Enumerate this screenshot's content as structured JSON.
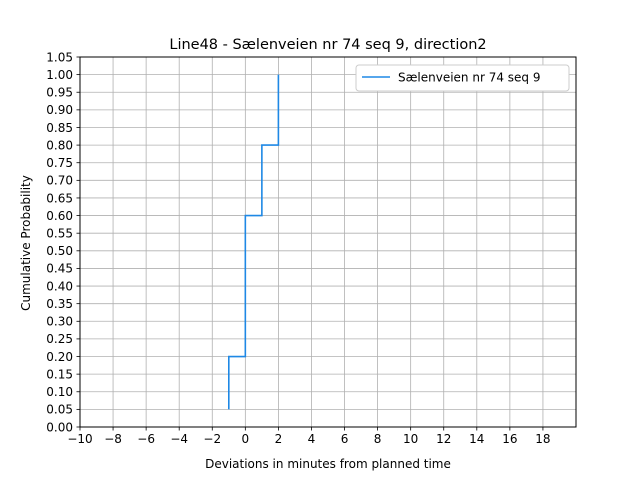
{
  "chart_data": {
    "type": "line",
    "drawstyle": "step",
    "title": "Line48 - Sælenveien nr 74 seq 9, direction2",
    "xlabel": "Deviations in minutes from planned time",
    "ylabel": "Cumulative Probability",
    "xlim": [
      -10,
      20
    ],
    "ylim": [
      0,
      1.05
    ],
    "xticks": [
      -10,
      -8,
      -6,
      -4,
      -2,
      0,
      2,
      4,
      6,
      8,
      10,
      12,
      14,
      16,
      18
    ],
    "xtick_labels": [
      "−10",
      "−8",
      "−6",
      "−4",
      "−2",
      "0",
      "2",
      "4",
      "6",
      "8",
      "10",
      "12",
      "14",
      "16",
      "18"
    ],
    "yticks": [
      0,
      0.05,
      0.1,
      0.15,
      0.2,
      0.25,
      0.3,
      0.35,
      0.4,
      0.45,
      0.5,
      0.55,
      0.6,
      0.65,
      0.7,
      0.75,
      0.8,
      0.85,
      0.9,
      0.95,
      1.0,
      1.05
    ],
    "ytick_labels": [
      "0.00",
      "0.05",
      "0.10",
      "0.15",
      "0.20",
      "0.25",
      "0.30",
      "0.35",
      "0.40",
      "0.45",
      "0.50",
      "0.55",
      "0.60",
      "0.65",
      "0.70",
      "0.75",
      "0.80",
      "0.85",
      "0.90",
      "0.95",
      "1.00",
      "1.05"
    ],
    "grid": true,
    "legend_position": "top-right",
    "series": [
      {
        "name": "Sælenveien nr 74 seq 9",
        "color": "#1e88e5",
        "points": [
          [
            -1,
            0.05
          ],
          [
            -1,
            0.2
          ],
          [
            0,
            0.2
          ],
          [
            0,
            0.6
          ],
          [
            1,
            0.6
          ],
          [
            1,
            0.8
          ],
          [
            2,
            0.8
          ],
          [
            2,
            1.0
          ]
        ]
      }
    ]
  }
}
